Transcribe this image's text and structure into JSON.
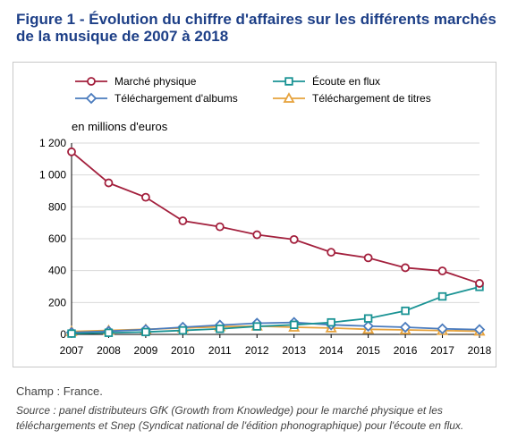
{
  "figure": {
    "title_line1": "Figure 1 - Évolution du chiffre d'affaires sur les différents marchés",
    "title_line2": "de la musique de 2007 à 2018"
  },
  "notes": {
    "champ": "Champ : France.",
    "source": "Source : panel distributeurs GfK (Growth from Knowledge) pour le marché physique et les téléchargements et Snep (Syndicat national de l'édition phonographique) pour l'écoute en flux."
  },
  "chart_data": {
    "type": "line",
    "ylabel": "en millions d'euros",
    "x": [
      2007,
      2008,
      2009,
      2010,
      2011,
      2012,
      2013,
      2014,
      2015,
      2016,
      2017,
      2018
    ],
    "ylim": [
      0,
      1200
    ],
    "yticks": [
      0,
      200,
      400,
      600,
      800,
      1000,
      1200
    ],
    "ytick_labels": [
      "0",
      "200",
      "400",
      "600",
      "800",
      "1 000",
      "1 200"
    ],
    "grid": "horizontal",
    "legend_position": "top",
    "series": [
      {
        "name": "Marché physique",
        "color": "#a3203d",
        "marker": "circle",
        "values": [
          1145,
          950,
          860,
          712,
          675,
          625,
          595,
          515,
          480,
          418,
          398,
          320
        ]
      },
      {
        "name": "Écoute en flux",
        "color": "#1a9394",
        "marker": "square",
        "values": [
          5,
          10,
          15,
          25,
          35,
          50,
          60,
          75,
          100,
          148,
          238,
          298
        ]
      },
      {
        "name": "Téléchargement d'albums",
        "color": "#4a7bbd",
        "marker": "diamond",
        "values": [
          12,
          20,
          30,
          45,
          58,
          70,
          75,
          60,
          52,
          45,
          35,
          30
        ]
      },
      {
        "name": "Téléchargement de titres",
        "color": "#e6a23c",
        "marker": "triangle",
        "values": [
          18,
          25,
          32,
          40,
          48,
          52,
          45,
          40,
          32,
          28,
          24,
          20
        ]
      }
    ]
  }
}
